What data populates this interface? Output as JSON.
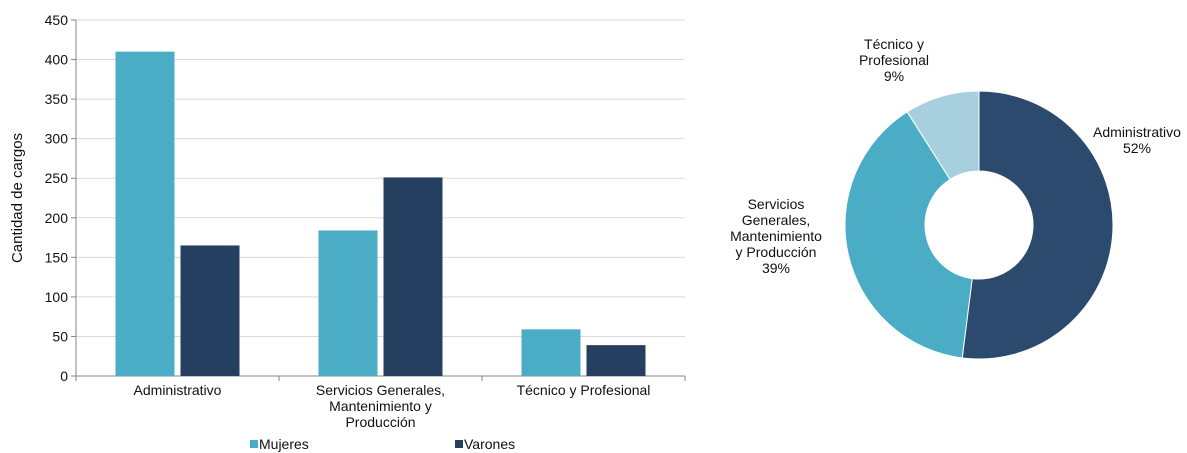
{
  "chart_data": [
    {
      "type": "bar",
      "ylabel": "Cantidad de cargos",
      "ylim": [
        0,
        450
      ],
      "yticks": [
        0,
        50,
        100,
        150,
        200,
        250,
        300,
        350,
        400,
        450
      ],
      "grid": true,
      "legend_position": "bottom",
      "categories": [
        [
          "Administrativo"
        ],
        [
          "Servicios Generales,",
          "Mantenimiento y",
          "Producción"
        ],
        [
          "Técnico y Profesional"
        ]
      ],
      "series": [
        {
          "name": "Mujeres",
          "color": "#4bacc6",
          "values": [
            410,
            184,
            59
          ]
        },
        {
          "name": "Varones",
          "color": "#243f60",
          "values": [
            165,
            251,
            39
          ]
        }
      ]
    },
    {
      "type": "pie",
      "donut": true,
      "slices": [
        {
          "label": [
            "Administrativo"
          ],
          "percent_label": "52%",
          "value": 52,
          "color": "#2c4a6e"
        },
        {
          "label": [
            "Servicios",
            "Generales,",
            "Mantenimiento",
            "y Producción"
          ],
          "percent_label": "39%",
          "value": 39,
          "color": "#4bacc6"
        },
        {
          "label": [
            "Técnico y",
            "Profesional"
          ],
          "percent_label": "9%",
          "value": 9,
          "color": "#a8cfdd"
        }
      ]
    }
  ]
}
